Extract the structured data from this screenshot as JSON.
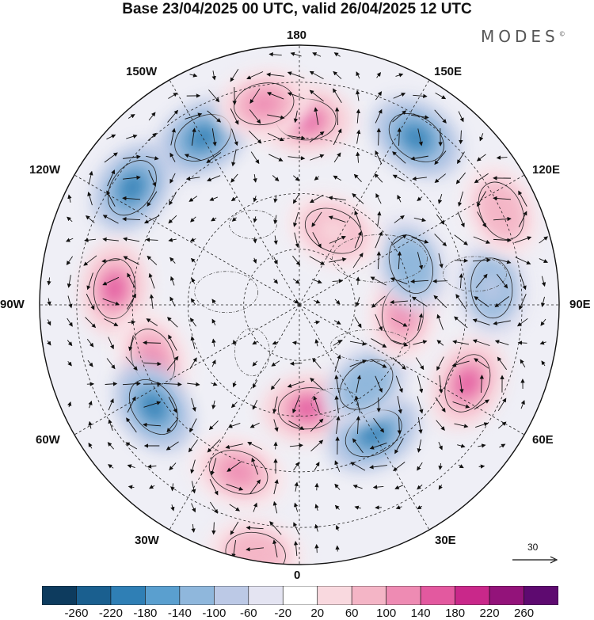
{
  "title": "Base 23/04/2025 00 UTC, valid 26/04/2025 12 UTC",
  "brand": "MODES",
  "brand_mark": "©",
  "longitude_labels": {
    "top": "180",
    "bottom": "0",
    "left": "90W",
    "right": "90E",
    "upper_left": "150W",
    "upper_right": "150E",
    "mid_upper_left": "120W",
    "mid_upper_right": "120E",
    "mid_lower_left": "60W",
    "mid_lower_right": "60E",
    "lower_left": "30W",
    "lower_right": "30E"
  },
  "reference_vector": {
    "value": "30"
  },
  "colorbar": {
    "colors": [
      "#0d3b5e",
      "#1a5f8f",
      "#2f7fb5",
      "#5a9fcf",
      "#8fb7dc",
      "#bcc9e6",
      "#e4e4f2",
      "#ffffff",
      "#f9d9df",
      "#f4b5c6",
      "#ee8bb3",
      "#e3599f",
      "#c9288a",
      "#93137a",
      "#5e0a70"
    ],
    "ticks": [
      "-260",
      "-220",
      "-180",
      "-140",
      "-100",
      "-60",
      "-20",
      "20",
      "60",
      "100",
      "140",
      "180",
      "220",
      "260"
    ]
  },
  "anomaly_centers": [
    {
      "lon": -150,
      "lat": 38,
      "value": -140,
      "color": "#2f7fb5"
    },
    {
      "lon": 178,
      "lat": 40,
      "value": 140,
      "color": "#e3599f"
    },
    {
      "lon": 145,
      "lat": 35,
      "value": -140,
      "color": "#2f7fb5"
    },
    {
      "lon": -170,
      "lat": 35,
      "value": 100,
      "color": "#ee8bb3"
    },
    {
      "lon": -125,
      "lat": 35,
      "value": -140,
      "color": "#2f7fb5"
    },
    {
      "lon": -95,
      "lat": 40,
      "value": 140,
      "color": "#e3599f"
    },
    {
      "lon": -70,
      "lat": 48,
      "value": 100,
      "color": "#ee8bb3"
    },
    {
      "lon": -55,
      "lat": 42,
      "value": -140,
      "color": "#2f7fb5"
    },
    {
      "lon": -20,
      "lat": 42,
      "value": 100,
      "color": "#ee8bb3"
    },
    {
      "lon": -10,
      "lat": 22,
      "value": 60,
      "color": "#f4b5c6"
    },
    {
      "lon": 5,
      "lat": 62,
      "value": 140,
      "color": "#e3599f"
    },
    {
      "lon": 30,
      "lat": 50,
      "value": -140,
      "color": "#2f7fb5"
    },
    {
      "lon": 40,
      "lat": 62,
      "value": -100,
      "color": "#8fb7dc"
    },
    {
      "lon": 65,
      "lat": 40,
      "value": 140,
      "color": "#e3599f"
    },
    {
      "lon": 85,
      "lat": 62,
      "value": 100,
      "color": "#ee8bb3"
    },
    {
      "lon": 95,
      "lat": 38,
      "value": -60,
      "color": "#bcc9e6"
    },
    {
      "lon": 110,
      "lat": 58,
      "value": -100,
      "color": "#8fb7dc"
    },
    {
      "lon": 115,
      "lat": 30,
      "value": 60,
      "color": "#f4b5c6"
    },
    {
      "lon": 155,
      "lat": 68,
      "value": 60,
      "color": "#f9d9df"
    }
  ]
}
